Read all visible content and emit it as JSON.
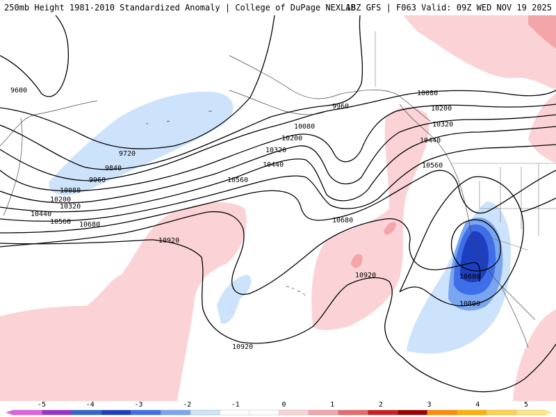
{
  "header": {
    "title": "250mb Height 1981-2010 Standardized Anomaly | College of DuPage NEXLAB",
    "run_info": "18Z GFS | F063 Valid: 09Z WED NOV 19 2025"
  },
  "colors": {
    "neg5": "#e060e0",
    "neg4": "#9933cc",
    "neg3": "#1d3fbf",
    "neg2": "#3f6fe8",
    "neg1": "#7aa5f0",
    "neg05": "#cde2fb",
    "pos05": "#fbd3d6",
    "pos1": "#f3a5a9",
    "pos2": "#e86a6a",
    "pos3": "#cc2020",
    "pos4": "#ffb000",
    "pos5": "#ffd24a"
  },
  "contour_labels": {
    "c9600": "9600",
    "c9720": "9720",
    "c9840": "9840",
    "c9960_w": "9960",
    "c9960_c": "9960",
    "c10080_w": "10080",
    "c10080_c": "10080",
    "c10080_e": "10080",
    "c10200_w": "10200",
    "c10200_c": "10200",
    "c10200_e": "10200",
    "c10320_w": "10320",
    "c10320_c": "10320",
    "c10320_e": "10320",
    "c10440_w": "10440",
    "c10440_c": "10440",
    "c10440_e": "10440",
    "c10560_w": "10560",
    "c10560_c": "10560",
    "c10560_e": "10560",
    "c10680_w": "10680",
    "c10680_c": "10680",
    "c10680_e": "10680",
    "c10800_e": "10800",
    "c10920_w": "10920",
    "c10920_c": "10920",
    "c10920_s": "10920"
  },
  "legend": {
    "ticks": [
      "-5",
      "-4",
      "-3",
      "-2",
      "-1",
      "0",
      "1",
      "2",
      "3",
      "4",
      "5"
    ],
    "bin_colors": [
      "#e060e0",
      "#9933cc",
      "#3366cc",
      "#1d3fbf",
      "#3f6fe8",
      "#7aa5f0",
      "#cde2fb",
      "#ffffff",
      "#ffffff",
      "#fbd3d6",
      "#f3a5a9",
      "#e86a6a",
      "#cc2020",
      "#a00000",
      "#ff8c00",
      "#ffb000",
      "#ffd24a",
      "#ffe680"
    ]
  }
}
